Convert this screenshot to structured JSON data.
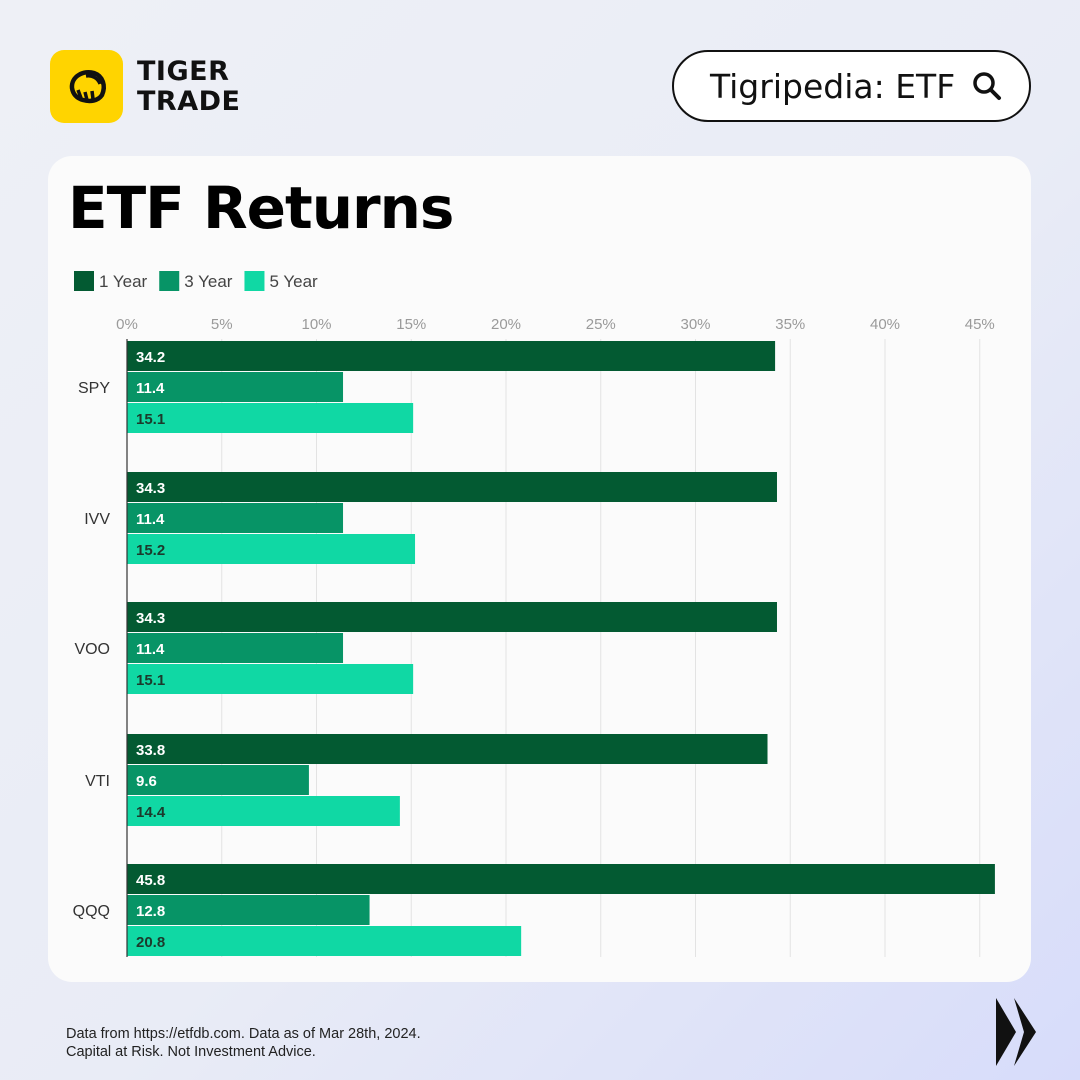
{
  "brand": {
    "line1": "TIGER",
    "line2": "TRADE",
    "logo_icon": "tiger-claw-icon",
    "accent_color": "#ffd400"
  },
  "search": {
    "label": "Tigripedia: ETF",
    "icon": "search-icon"
  },
  "card": {
    "title": "ETF Returns"
  },
  "chart_data": {
    "type": "bar",
    "orientation": "horizontal",
    "title": "ETF Returns",
    "xlabel": "",
    "ylabel": "",
    "categories": [
      "SPY",
      "IVV",
      "VOO",
      "VTI",
      "QQQ"
    ],
    "series": [
      {
        "name": "1 Year",
        "color": "#035a32",
        "values": [
          34.2,
          34.3,
          34.3,
          33.8,
          45.8
        ]
      },
      {
        "name": "3 Year",
        "color": "#079466",
        "values": [
          11.4,
          11.4,
          11.4,
          9.6,
          12.8
        ]
      },
      {
        "name": "5 Year",
        "color": "#10d8a4",
        "values": [
          15.1,
          15.2,
          15.1,
          14.4,
          20.8
        ]
      }
    ],
    "xlim": [
      0,
      45
    ],
    "xticks": [
      "0%",
      "5%",
      "10%",
      "15%",
      "20%",
      "25%",
      "30%",
      "35%",
      "40%",
      "45%"
    ],
    "grid": true,
    "legend": "top-left",
    "data_labels": true
  },
  "footer": {
    "line1": "Data from https://etfdb.com. Data as of Mar 28th, 2024.",
    "line2": "Capital at Risk. Not Investment Advice."
  }
}
